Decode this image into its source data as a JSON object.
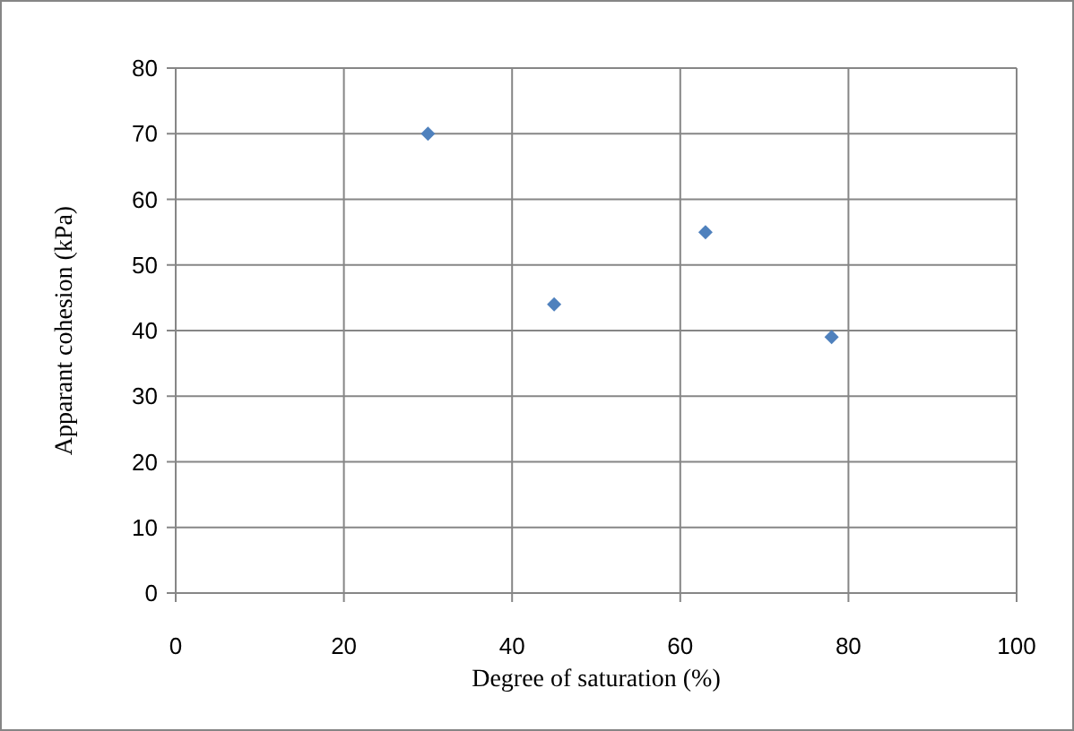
{
  "chart_data": {
    "type": "scatter",
    "xlabel": "Degree of saturation (%)",
    "ylabel": "Apparant cohesion (kPa)",
    "x": [
      30,
      45,
      63,
      78
    ],
    "series": [
      {
        "color": "#4f81bd",
        "values": [
          70,
          44,
          55,
          39
        ]
      }
    ],
    "xlim": [
      0,
      100
    ],
    "xticks": [
      0,
      20,
      40,
      60,
      80,
      100
    ],
    "ylim": [
      0,
      80
    ],
    "yticks": [
      0,
      10,
      20,
      30,
      40,
      50,
      60,
      70,
      80
    ],
    "grid": true,
    "marker": "diamond"
  }
}
